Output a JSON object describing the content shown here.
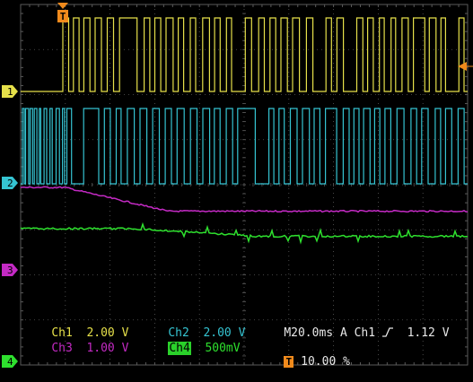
{
  "scope": {
    "channels": [
      {
        "marker": "1",
        "label": "Ch1",
        "scale": "2.00 V",
        "color": "#e6e04a"
      },
      {
        "marker": "2",
        "label": "Ch2",
        "scale": "2.00 V",
        "color": "#35c4d2"
      },
      {
        "marker": "3",
        "label": "Ch3",
        "scale": "1.00 V",
        "color": "#c42ac4"
      },
      {
        "marker": "4",
        "label": "Ch4",
        "scale": "500mV",
        "color": "#2ee02e"
      }
    ],
    "timebase": "M20.0ms",
    "acq_mode": "A",
    "trigger_source": "Ch1",
    "trigger_slope_icon": "rising-edge-icon",
    "trigger_level": "1.12 V",
    "trigger_position_marker": "T",
    "trigger_position": "10.00 %",
    "colors": {
      "background": "#000000",
      "grid": "#5a5a5a",
      "trigger": "#f08a1c"
    }
  }
}
